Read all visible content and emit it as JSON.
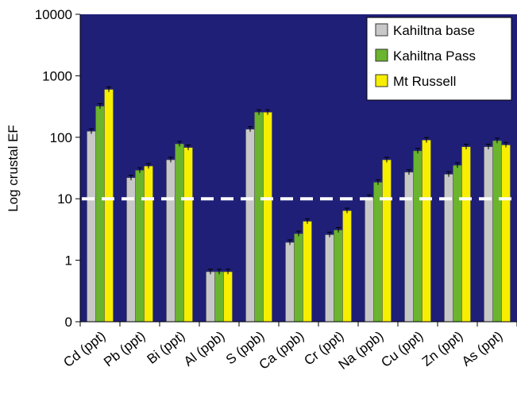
{
  "chart_data": {
    "type": "bar",
    "title": "",
    "xlabel": "",
    "ylabel": "Log crustal EF",
    "yscale": "log",
    "ylim": [
      0,
      10000
    ],
    "yticks": [
      {
        "value": 0,
        "label": "0"
      },
      {
        "value": 1,
        "label": "1"
      },
      {
        "value": 10,
        "label": "10"
      },
      {
        "value": 100,
        "label": "100"
      },
      {
        "value": 1000,
        "label": "1000"
      },
      {
        "value": 10000,
        "label": "10000"
      }
    ],
    "categories": [
      "Cd (ppt)",
      "Pb (ppt)",
      "Bi (ppt)",
      "Al (ppb)",
      "S (ppb)",
      "Ca (ppb)",
      "Cr (ppt)",
      "Na (ppb)",
      "Cu (ppt)",
      "Zn (ppt)",
      "As (ppt)"
    ],
    "series": [
      {
        "name": "Kahiltna base",
        "color": "#c8c8c8",
        "values": [
          125,
          22,
          43,
          0.65,
          135,
          1.95,
          2.6,
          10.5,
          27,
          25,
          70
        ]
      },
      {
        "name": "Kahiltna Pass",
        "color": "#6ab42e",
        "values": [
          320,
          29,
          78,
          0.65,
          255,
          2.7,
          3.1,
          18.5,
          60,
          35,
          88
        ]
      },
      {
        "name": "Mt Russell",
        "color": "#f7ee00",
        "values": [
          600,
          34,
          68,
          0.65,
          255,
          4.3,
          6.4,
          43,
          90,
          70,
          75
        ]
      }
    ],
    "reference_line": {
      "value": 10,
      "style": "dashed",
      "color": "#ffffff"
    },
    "plot_background": "#1f1f78",
    "legend_position": "top-right",
    "grid": false,
    "error_bars": true
  }
}
